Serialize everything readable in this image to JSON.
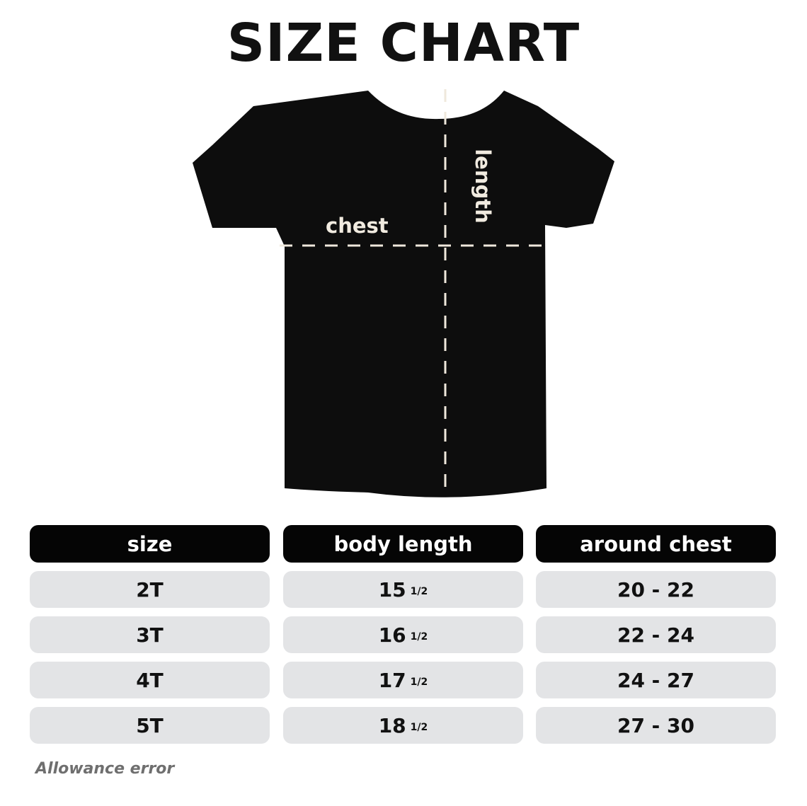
{
  "title": "SIZE CHART",
  "diagram": {
    "chest_label": "chest",
    "length_label": "length",
    "shirt_color": "#0d0d0d",
    "guide_color": "#efe8dc"
  },
  "table": {
    "headers": [
      "size",
      "body length",
      "around chest"
    ],
    "rows": [
      {
        "size": "2T",
        "body_length": "15",
        "fraction": "1/2",
        "chest": "20 - 22"
      },
      {
        "size": "3T",
        "body_length": "16",
        "fraction": "1/2",
        "chest": "22 - 24"
      },
      {
        "size": "4T",
        "body_length": "17",
        "fraction": "1/2",
        "chest": "24 - 27"
      },
      {
        "size": "5T",
        "body_length": "18",
        "fraction": "1/2",
        "chest": "27 - 30"
      }
    ]
  },
  "footer": "Allowance error"
}
